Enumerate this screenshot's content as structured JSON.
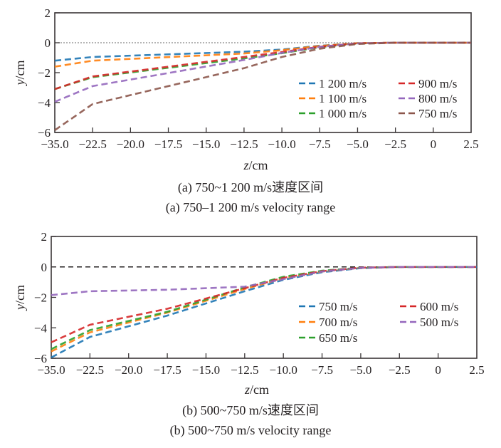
{
  "chart_data": [
    {
      "type": "line",
      "id": "a",
      "caption_cn": "(a) 750~1 200 m/s速度区间",
      "caption_en": "(a) 750–1 200 m/s velocity range",
      "xlabel_var": "z",
      "xlabel_unit": "/cm",
      "ylabel_var": "y",
      "ylabel_unit": "/cm",
      "xticks": [
        "−35.0",
        "−22.5",
        "−20.0",
        "−17.5",
        "−15.0",
        "−12.5",
        "−10.0",
        "−7.5",
        "−5.0",
        "−2.5",
        "0",
        "2.5"
      ],
      "xtick_values": [
        -35.0,
        -22.5,
        -20.0,
        -17.5,
        -15.0,
        -12.5,
        -10.0,
        -7.5,
        -5.0,
        -2.5,
        0,
        2.5
      ],
      "yticks": [
        "2",
        "0",
        "−2",
        "−4",
        "−6"
      ],
      "ytick_values": [
        2,
        0,
        -2,
        -4,
        -6
      ],
      "ylim": [
        -6,
        2
      ],
      "xlim": [
        -35.0,
        2.5
      ],
      "reference_line": {
        "y": 0,
        "style": "dotted",
        "color": "#888888"
      },
      "legend_position": "bottom-right",
      "legend_columns": 2,
      "series": [
        {
          "name": "1 200 m/s",
          "color": "#1f77b4",
          "x": [
            -35,
            -22.5,
            -12.5,
            -10,
            -7.5,
            -5,
            -2.5,
            0,
            2.5
          ],
          "y": [
            -1.2,
            -0.95,
            -0.6,
            -0.45,
            -0.2,
            -0.03,
            0,
            0,
            0
          ]
        },
        {
          "name": "1 100 m/s",
          "color": "#ff7f0e",
          "x": [
            -35,
            -22.5,
            -12.5,
            -10,
            -7.5,
            -5,
            -2.5,
            0,
            2.5
          ],
          "y": [
            -1.6,
            -1.2,
            -0.72,
            -0.5,
            -0.22,
            -0.03,
            0,
            0,
            0
          ]
        },
        {
          "name": "1 000 m/s",
          "color": "#2ca02c",
          "x": [
            -35,
            -22.5,
            -12.5,
            -10,
            -7.5,
            -5,
            -2.5,
            0,
            2.5
          ],
          "y": [
            -3.1,
            -2.3,
            -1.05,
            -0.7,
            -0.3,
            -0.05,
            0,
            0,
            0
          ]
        },
        {
          "name": "900 m/s",
          "color": "#d62728",
          "x": [
            -35,
            -22.5,
            -12.5,
            -10,
            -7.5,
            -5,
            -2.5,
            0,
            2.5
          ],
          "y": [
            -3.1,
            -2.25,
            -0.95,
            -0.62,
            -0.27,
            -0.04,
            0,
            0,
            0
          ]
        },
        {
          "name": "800 m/s",
          "color": "#9467bd",
          "x": [
            -35,
            -22.5,
            -12.5,
            -10,
            -7.5,
            -5,
            -2.5,
            0,
            2.5
          ],
          "y": [
            -3.95,
            -2.9,
            -1.15,
            -0.68,
            -0.28,
            -0.05,
            0,
            0,
            0
          ]
        },
        {
          "name": "750 m/s",
          "color": "#8c564b",
          "x": [
            -35,
            -22.5,
            -12.5,
            -10,
            -7.5,
            -5,
            -2.5,
            0,
            2.5
          ],
          "y": [
            -5.85,
            -4.1,
            -1.7,
            -0.95,
            -0.4,
            -0.08,
            0,
            0,
            0
          ]
        }
      ]
    },
    {
      "type": "line",
      "id": "b",
      "caption_cn": "(b) 500~750 m/s速度区间",
      "caption_en": "(b) 500~750 m/s velocity range",
      "xlabel_var": "z",
      "xlabel_unit": "/cm",
      "ylabel_var": "y",
      "ylabel_unit": "/cm",
      "xticks": [
        "−35.0",
        "−22.5",
        "−20.0",
        "−17.5",
        "−15.0",
        "−12.5",
        "−10.0",
        "−7.5",
        "−5.0",
        "−2.5",
        "0",
        "2.5"
      ],
      "xtick_values": [
        -35.0,
        -22.5,
        -20.0,
        -17.5,
        -15.0,
        -12.5,
        -10.0,
        -7.5,
        -5.0,
        -2.5,
        0,
        2.5
      ],
      "yticks": [
        "2",
        "0",
        "−2",
        "−4",
        "−6"
      ],
      "ytick_values": [
        2,
        0,
        -2,
        -4,
        -6
      ],
      "ylim": [
        -6,
        2
      ],
      "xlim": [
        -35.0,
        2.5
      ],
      "reference_line": {
        "y": 0,
        "style": "dashed",
        "color": "#231f20"
      },
      "legend_position": "bottom-right",
      "legend_columns": 2,
      "series": [
        {
          "name": "750 m/s",
          "color": "#1f77b4",
          "x": [
            -35,
            -22.5,
            -17.5,
            -12.5,
            -10,
            -7.5,
            -5,
            -2.5,
            0,
            2.5
          ],
          "y": [
            -5.95,
            -4.6,
            -3.2,
            -1.6,
            -0.85,
            -0.35,
            -0.08,
            0,
            0,
            0
          ]
        },
        {
          "name": "700 m/s",
          "color": "#ff7f0e",
          "x": [
            -35,
            -22.5,
            -17.5,
            -12.5,
            -10,
            -7.5,
            -5,
            -2.5,
            0,
            2.5
          ],
          "y": [
            -5.55,
            -4.3,
            -3.0,
            -1.45,
            -0.75,
            -0.3,
            -0.06,
            0,
            0,
            0
          ]
        },
        {
          "name": "650 m/s",
          "color": "#2ca02c",
          "x": [
            -35,
            -22.5,
            -17.5,
            -12.5,
            -10,
            -7.5,
            -5,
            -2.5,
            0,
            2.5
          ],
          "y": [
            -5.4,
            -4.15,
            -2.95,
            -1.35,
            -0.65,
            -0.25,
            -0.05,
            0,
            0,
            0
          ]
        },
        {
          "name": "600 m/s",
          "color": "#d62728",
          "x": [
            -35,
            -22.5,
            -17.5,
            -12.5,
            -10,
            -7.5,
            -5,
            -2.5,
            0,
            2.5
          ],
          "y": [
            -4.95,
            -3.8,
            -2.75,
            -1.4,
            -0.72,
            -0.28,
            -0.05,
            0,
            0,
            0
          ]
        },
        {
          "name": "500 m/s",
          "color": "#9467bd",
          "x": [
            -35,
            -22.5,
            -17.5,
            -12.5,
            -10,
            -7.5,
            -5,
            -2.5,
            0,
            2.5
          ],
          "y": [
            -1.85,
            -1.6,
            -1.5,
            -1.3,
            -0.8,
            -0.3,
            -0.06,
            0,
            0,
            0
          ]
        }
      ]
    }
  ]
}
